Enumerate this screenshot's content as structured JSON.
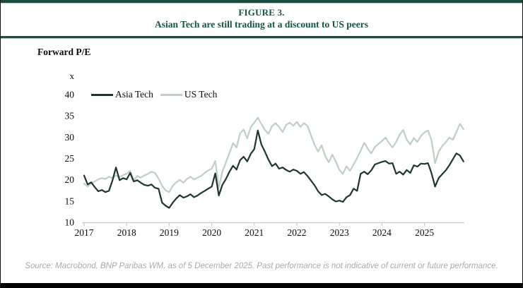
{
  "header": {
    "figure_label": "FIGURE 3.",
    "title": "Asian Tech are still trading at a discount to US peers",
    "text_color": "#165549"
  },
  "axis_title": "Forward P/E",
  "unit_label": "x",
  "source_note": "Source: Macrobond, BNP Paribas WM, as of 5 December 2025.  Past performance is not indicative of current or future performance.",
  "colors": {
    "accent_dark_teal": "#1a4c43",
    "accent_light_sage": "#bad0c4",
    "axis_line": "#c6cbcd",
    "tick_text": "#0c0c0c",
    "source_text": "#a3abb0",
    "frame_border": "#111111",
    "bottom_bar": "#000000"
  },
  "chart_data": {
    "type": "line",
    "title": "Forward P/E",
    "unit": "x",
    "x_start": 2017.0,
    "x_step": 0.0833333,
    "xlim": [
      2017.0,
      2025.95
    ],
    "ylim": [
      10,
      40
    ],
    "y_ticks": [
      10,
      15,
      20,
      25,
      30,
      35,
      40
    ],
    "x_tick_labels": [
      "2017",
      "2018",
      "2019",
      "2020",
      "2021",
      "2022",
      "2023",
      "2024",
      "2025"
    ],
    "grid": false,
    "legend_position": "top-left-inside",
    "series": [
      {
        "name": "Asia Tech",
        "color": "#1e3631",
        "values": [
          21.0,
          18.9,
          19.4,
          18.3,
          17.3,
          17.6,
          17.1,
          17.4,
          19.8,
          22.9,
          19.9,
          20.4,
          20.1,
          21.6,
          19.6,
          19.9,
          19.3,
          18.8,
          18.6,
          18.9,
          18.1,
          17.9,
          14.6,
          13.9,
          13.4,
          14.6,
          15.6,
          16.4,
          15.8,
          16.1,
          16.6,
          15.9,
          16.3,
          16.9,
          17.4,
          17.9,
          18.4,
          21.5,
          16.3,
          18.8,
          20.2,
          21.9,
          23.3,
          22.4,
          24.6,
          25.4,
          24.3,
          26.1,
          27.2,
          31.6,
          28.3,
          26.6,
          24.7,
          23.2,
          23.8,
          22.6,
          22.9,
          22.3,
          21.9,
          22.4,
          22.1,
          21.4,
          21.8,
          20.9,
          19.8,
          18.7,
          17.3,
          16.4,
          16.7,
          16.1,
          15.4,
          14.9,
          15.1,
          14.8,
          15.9,
          16.4,
          17.9,
          17.4,
          21.4,
          21.9,
          21.3,
          22.2,
          23.6,
          23.9,
          24.2,
          24.4,
          23.8,
          23.9,
          21.4,
          21.9,
          21.2,
          22.3,
          21.6,
          23.4,
          23.1,
          23.8,
          23.7,
          23.9,
          21.5,
          18.4,
          20.4,
          21.3,
          22.2,
          23.4,
          24.8,
          26.2,
          25.7,
          24.3
        ]
      },
      {
        "name": "US Tech",
        "color": "#bdd0c1",
        "values": [
          19.1,
          18.4,
          19.2,
          19.6,
          20.1,
          20.4,
          20.2,
          20.7,
          20.4,
          21.0,
          20.6,
          21.1,
          21.4,
          22.1,
          19.9,
          20.9,
          20.5,
          21.0,
          21.4,
          21.9,
          21.6,
          20.3,
          18.6,
          17.5,
          17.1,
          18.6,
          19.4,
          20.0,
          19.3,
          20.2,
          20.7,
          20.1,
          20.5,
          20.9,
          21.6,
          22.2,
          22.6,
          24.4,
          18.1,
          21.9,
          24.1,
          26.3,
          28.6,
          27.6,
          30.9,
          31.8,
          29.7,
          32.4,
          33.4,
          34.6,
          33.1,
          31.7,
          30.8,
          32.6,
          33.3,
          32.4,
          31.2,
          32.9,
          33.4,
          32.7,
          33.6,
          32.4,
          33.3,
          32.7,
          30.4,
          28.2,
          26.6,
          28.1,
          25.6,
          24.1,
          25.9,
          24.3,
          22.3,
          21.4,
          23.2,
          22.1,
          23.6,
          25.1,
          26.8,
          28.7,
          27.3,
          26.2,
          27.7,
          28.4,
          29.1,
          29.9,
          28.6,
          27.6,
          28.9,
          30.6,
          31.7,
          29.4,
          28.3,
          29.8,
          28.9,
          30.3,
          31.1,
          31.6,
          29.3,
          23.9,
          26.6,
          27.9,
          28.8,
          29.9,
          29.4,
          31.2,
          33.1,
          31.9
        ]
      }
    ]
  }
}
